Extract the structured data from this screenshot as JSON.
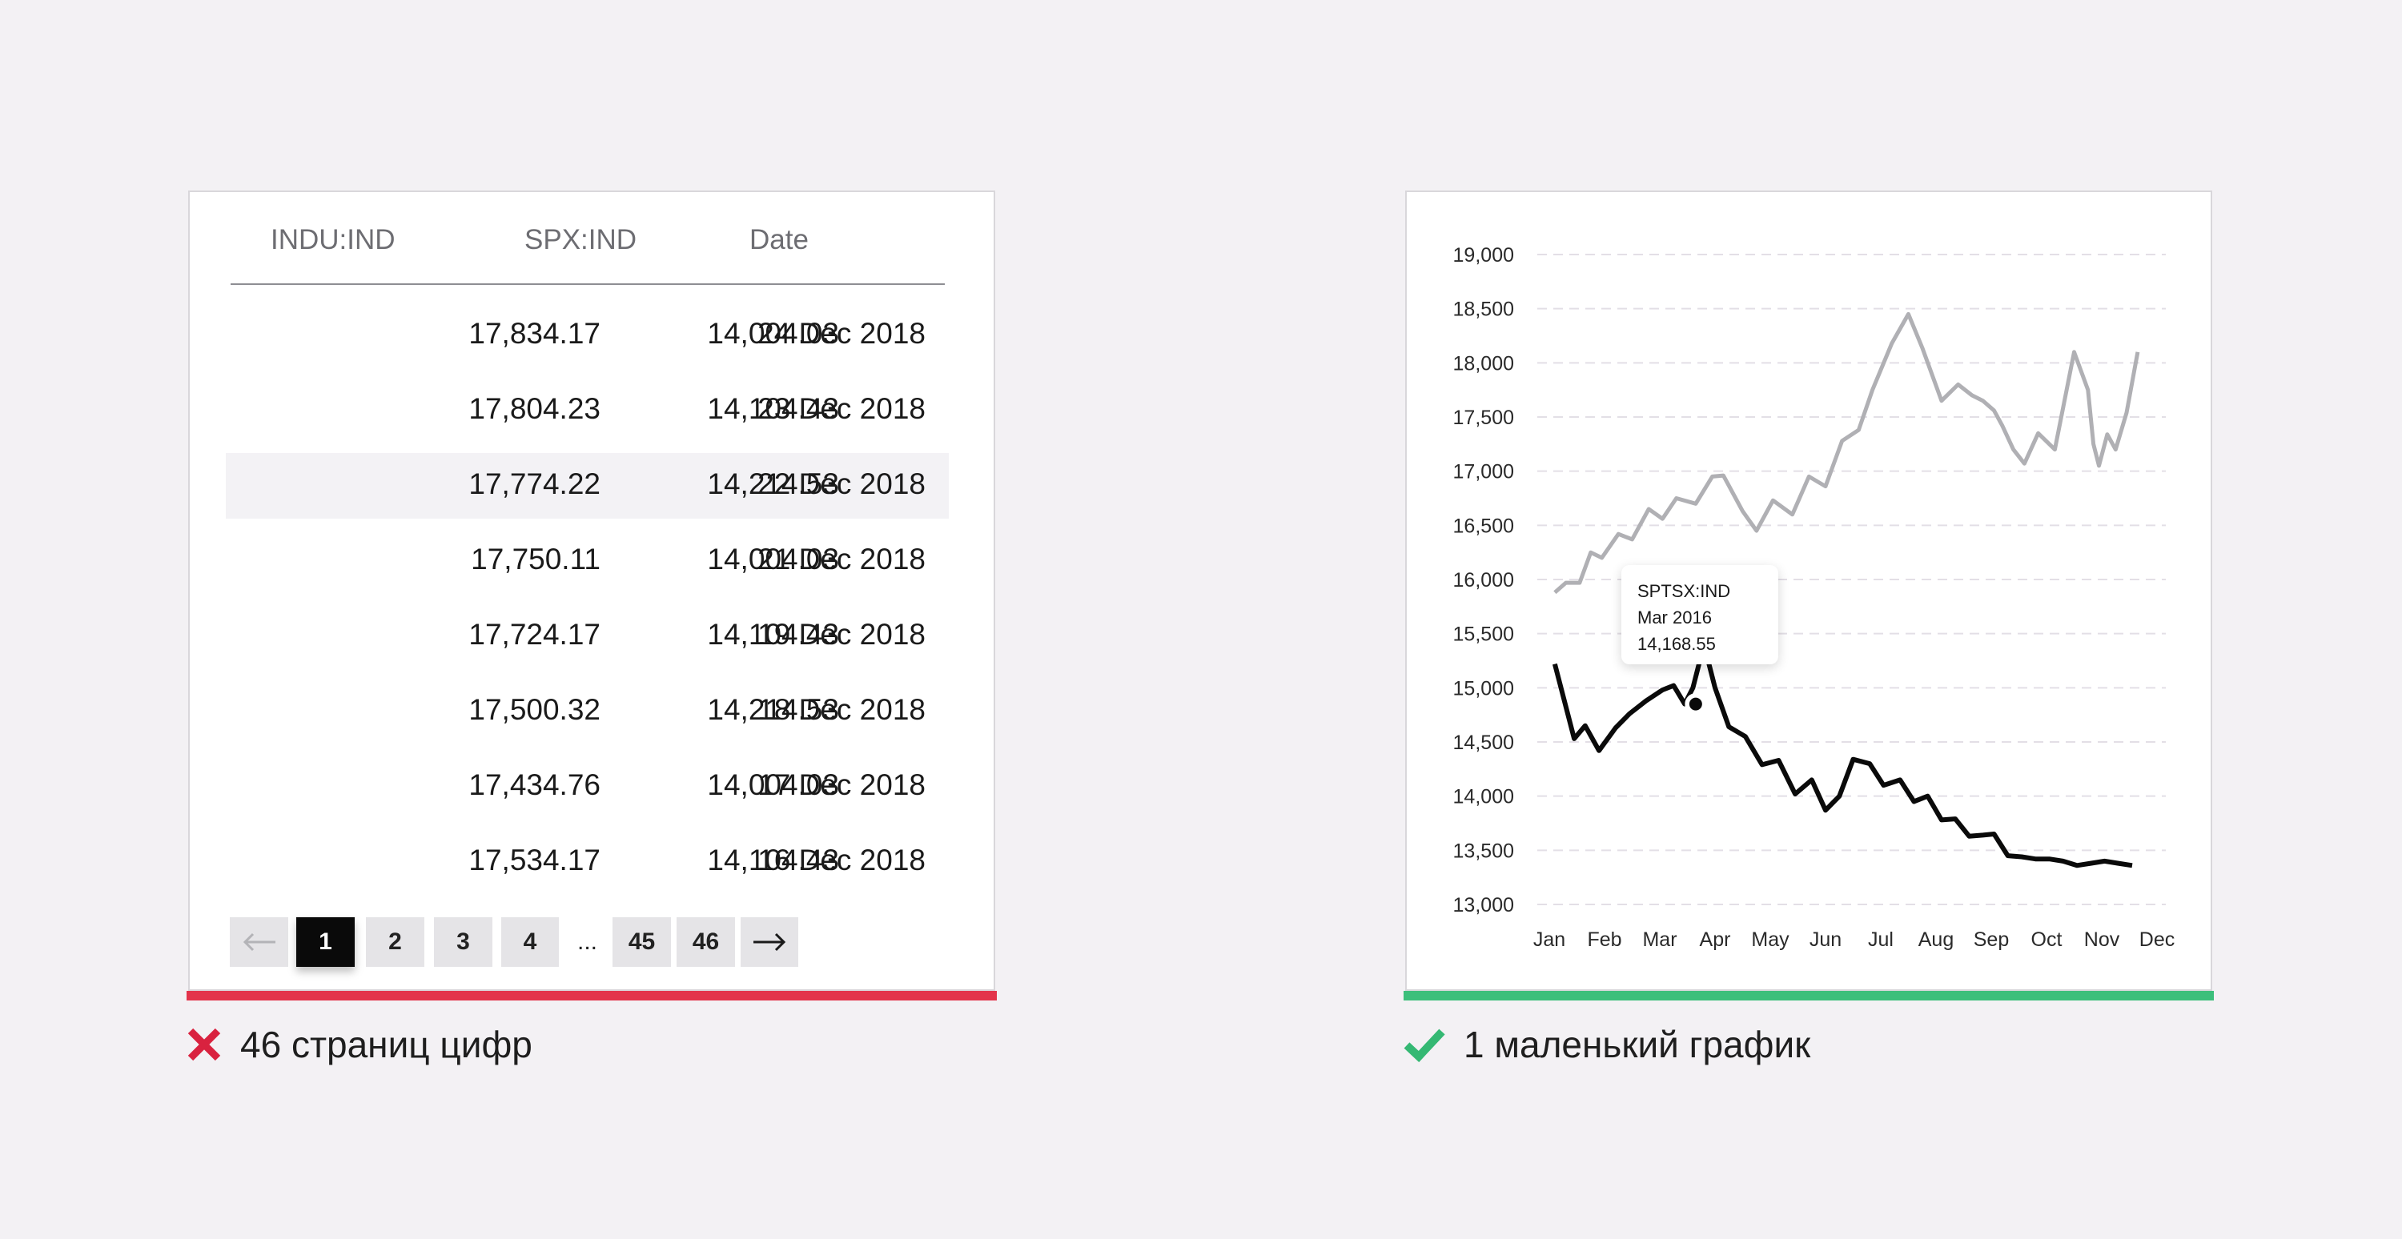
{
  "table": {
    "headers": [
      "INDU:IND",
      "SPX:IND",
      "Date"
    ],
    "rows": [
      [
        "17,834.17",
        "14,004.03",
        "24 Dec 2018"
      ],
      [
        "17,804.23",
        "14,104.43",
        "23 Dec 2018"
      ],
      [
        "17,774.22",
        "14,214.53",
        "22 Dec 2018"
      ],
      [
        "17,750.11",
        "14,004.03",
        "21 Dec 2018"
      ],
      [
        "17,724.17",
        "14,104.43",
        "19 Dec 2018"
      ],
      [
        "17,500.32",
        "14,214.53",
        "18 Dec 2018"
      ],
      [
        "17,434.76",
        "14,004.03",
        "17 Dec 2018"
      ],
      [
        "17,534.17",
        "14,104.43",
        "16 Dec 2018"
      ]
    ],
    "highlighted_row_index": 2,
    "pagination": {
      "prev_icon": "arrow-left-icon",
      "pages": [
        "1",
        "2",
        "3",
        "4"
      ],
      "ellipsis": "...",
      "last_pages": [
        "45",
        "46"
      ],
      "current_page": "1",
      "next_icon": "arrow-right-icon"
    }
  },
  "bad_caption": {
    "icon": "cross-icon",
    "text": "46 страниц цифр",
    "color": "#e3344b"
  },
  "good_caption": {
    "icon": "check-icon",
    "text": "1 маленький график",
    "color": "#3cbf7b"
  },
  "tooltip": {
    "series": "SPTSX:IND",
    "date": "Mar 2016",
    "value": "14,168.55"
  },
  "chart_data": {
    "type": "line",
    "categories": [
      "Jan",
      "Feb",
      "Mar",
      "Apr",
      "May",
      "Jun",
      "Jul",
      "Aug",
      "Sep",
      "Oct",
      "Nov",
      "Dec"
    ],
    "y_ticks": [
      "19,000",
      "18,500",
      "18,000",
      "17,500",
      "17,000",
      "16,500",
      "16,000",
      "15,500",
      "15,000",
      "14,500",
      "14,000",
      "13,500",
      "13,000"
    ],
    "ylim": [
      13000,
      19000
    ],
    "grid": "horizontal dashed",
    "series": [
      {
        "color": "#b0b0b4",
        "x": [
          0.1,
          0.3,
          0.55,
          0.75,
          0.95,
          1.25,
          1.5,
          1.8,
          2.05,
          2.3,
          2.65,
          2.95,
          3.15,
          3.5,
          3.75,
          4.05,
          4.4,
          4.7,
          5.0,
          5.3,
          5.6,
          5.85,
          6.2,
          6.5,
          6.75,
          7.1,
          7.4,
          7.65,
          7.85,
          8.05,
          8.2,
          8.4,
          8.6,
          8.85,
          9.15,
          9.5,
          9.75,
          9.85,
          9.95,
          10.1,
          10.25,
          10.45,
          10.65
        ],
        "values": [
          15880,
          15970,
          15970,
          16250,
          16200,
          16420,
          16370,
          16650,
          16560,
          16750,
          16700,
          16950,
          16960,
          16630,
          16450,
          16730,
          16600,
          16950,
          16860,
          17280,
          17380,
          17750,
          18180,
          18450,
          18140,
          17650,
          17800,
          17700,
          17650,
          17560,
          17420,
          17200,
          17070,
          17350,
          17200,
          18100,
          17750,
          17250,
          17050,
          17340,
          17200,
          17540,
          18100
        ]
      },
      {
        "color": "#0a0a0a",
        "x": [
          0.1,
          0.45,
          0.65,
          0.9,
          1.2,
          1.45,
          1.75,
          2.05,
          2.25,
          2.45,
          2.6,
          2.8,
          3.0,
          3.25,
          3.55,
          3.85,
          4.15,
          4.45,
          4.75,
          5.0,
          5.25,
          5.5,
          5.8,
          6.05,
          6.35,
          6.6,
          6.85,
          7.1,
          7.35,
          7.6,
          7.85,
          8.05,
          8.3,
          8.55,
          8.8,
          9.05,
          9.3,
          9.55,
          9.8,
          10.05,
          10.3,
          10.55
        ],
        "values": [
          15220,
          14530,
          14650,
          14420,
          14630,
          14760,
          14880,
          14980,
          15020,
          14850,
          15000,
          15400,
          15000,
          14640,
          14550,
          14290,
          14330,
          14020,
          14150,
          13870,
          14000,
          14340,
          14300,
          14100,
          14150,
          13950,
          14000,
          13780,
          13790,
          13630,
          13640,
          13650,
          13450,
          13440,
          13420,
          13420,
          13400,
          13360,
          13380,
          13400,
          13380,
          13360
        ]
      }
    ]
  }
}
